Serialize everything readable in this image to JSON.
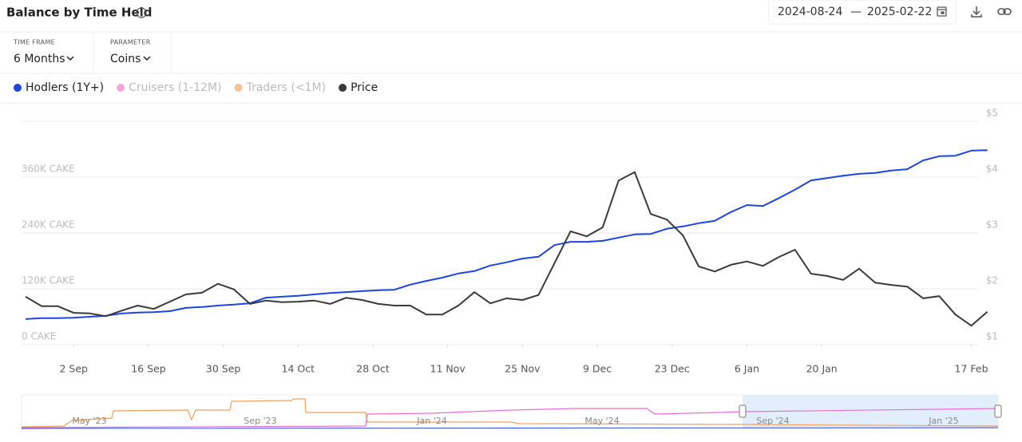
{
  "header": {
    "title": "Balance by Time Held",
    "date_from": "2024-08-24",
    "date_separator": "—",
    "date_to": "2025-02-22"
  },
  "controls": {
    "time_frame_label": "TIME FRAME",
    "time_frame": "6 Months",
    "parameter_label": "PARAMETER",
    "parameter": "Coins"
  },
  "navigator": {
    "labels": [
      "May '23",
      "Sep '23",
      "Jan '24",
      "May '24",
      "Sep '24",
      "Jan '25"
    ]
  },
  "chart_data": {
    "type": "line",
    "x": [
      "2024-08-24",
      "2024-08-27",
      "2024-08-30",
      "2024-09-02",
      "2024-09-05",
      "2024-09-08",
      "2024-09-11",
      "2024-09-14",
      "2024-09-17",
      "2024-09-20",
      "2024-09-23",
      "2024-09-26",
      "2024-09-29",
      "2024-10-02",
      "2024-10-05",
      "2024-10-08",
      "2024-10-11",
      "2024-10-14",
      "2024-10-17",
      "2024-10-20",
      "2024-10-23",
      "2024-10-26",
      "2024-10-29",
      "2024-11-01",
      "2024-11-04",
      "2024-11-07",
      "2024-11-10",
      "2024-11-13",
      "2024-11-16",
      "2024-11-19",
      "2024-11-22",
      "2024-11-25",
      "2024-11-28",
      "2024-12-01",
      "2024-12-04",
      "2024-12-07",
      "2024-12-10",
      "2024-12-13",
      "2024-12-16",
      "2024-12-19",
      "2024-12-22",
      "2024-12-25",
      "2024-12-28",
      "2024-12-31",
      "2025-01-03",
      "2025-01-06",
      "2025-01-09",
      "2025-01-12",
      "2025-01-15",
      "2025-01-18",
      "2025-01-21",
      "2025-01-24",
      "2025-01-27",
      "2025-01-30",
      "2025-02-02",
      "2025-02-05",
      "2025-02-08",
      "2025-02-11",
      "2025-02-14",
      "2025-02-17",
      "2025-02-20"
    ],
    "series": [
      {
        "name": "Hodlers (1Y+)",
        "color": "#1f44e0",
        "axis": "y",
        "visible": true,
        "values": [
          55000,
          57000,
          57000,
          58000,
          60000,
          62000,
          67000,
          69000,
          70000,
          72000,
          79000,
          81000,
          84000,
          86000,
          89000,
          101000,
          103000,
          105000,
          108000,
          111000,
          113000,
          115000,
          117000,
          118000,
          129000,
          137000,
          144000,
          153000,
          158000,
          170000,
          177000,
          185000,
          189000,
          214000,
          221000,
          221000,
          223000,
          230000,
          237000,
          238000,
          249000,
          254000,
          261000,
          266000,
          285000,
          300000,
          298000,
          315000,
          333000,
          353000,
          358000,
          363000,
          367000,
          369000,
          374000,
          377000,
          396000,
          405000,
          406000,
          417000,
          418000
        ]
      },
      {
        "name": "Cruisers (1-12M)",
        "color": "#f3a6d8",
        "visible": false
      },
      {
        "name": "Traders (<1M)",
        "color": "#f7c49a",
        "visible": false
      },
      {
        "name": "Price",
        "color": "#3a3a3a",
        "axis": "y2",
        "visible": true,
        "values": [
          1.86,
          1.69,
          1.69,
          1.57,
          1.56,
          1.51,
          1.61,
          1.7,
          1.64,
          1.77,
          1.9,
          1.93,
          2.09,
          1.99,
          1.73,
          1.79,
          1.76,
          1.77,
          1.79,
          1.73,
          1.84,
          1.8,
          1.73,
          1.7,
          1.7,
          1.54,
          1.54,
          1.7,
          1.94,
          1.74,
          1.83,
          1.8,
          1.89,
          2.46,
          3.03,
          2.94,
          3.1,
          3.94,
          4.09,
          3.34,
          3.24,
          2.96,
          2.4,
          2.31,
          2.43,
          2.49,
          2.41,
          2.57,
          2.7,
          2.27,
          2.23,
          2.16,
          2.36,
          2.11,
          2.07,
          2.04,
          1.83,
          1.87,
          1.54,
          1.34,
          1.59
        ]
      }
    ],
    "xlim": [
      "2024-08-24",
      "2025-02-22"
    ],
    "xticks": [
      {
        "value": "2024-09-02",
        "label": "2 Sep"
      },
      {
        "value": "2024-09-16",
        "label": "16 Sep"
      },
      {
        "value": "2024-09-30",
        "label": "30 Sep"
      },
      {
        "value": "2024-10-14",
        "label": "14 Oct"
      },
      {
        "value": "2024-10-28",
        "label": "28 Oct"
      },
      {
        "value": "2024-11-11",
        "label": "11 Nov"
      },
      {
        "value": "2024-11-25",
        "label": "25 Nov"
      },
      {
        "value": "2024-12-09",
        "label": "9 Dec"
      },
      {
        "value": "2024-12-23",
        "label": "23 Dec"
      },
      {
        "value": "2025-01-06",
        "label": "6 Jan"
      },
      {
        "value": "2025-01-20",
        "label": "20 Jan"
      },
      {
        "value": "2025-02-17",
        "label": "17 Feb"
      }
    ],
    "ylim": [
      0,
      480000
    ],
    "yticks": [
      {
        "value": 0,
        "label": "0 CAKE"
      },
      {
        "value": 120000,
        "label": "120K CAKE"
      },
      {
        "value": 240000,
        "label": "240K CAKE"
      },
      {
        "value": 360000,
        "label": "360K CAKE"
      }
    ],
    "y2lim": [
      1,
      5
    ],
    "y2ticks": [
      {
        "value": 1,
        "label": "$1"
      },
      {
        "value": 2,
        "label": "$2"
      },
      {
        "value": 3,
        "label": "$3"
      },
      {
        "value": 4,
        "label": "$4"
      },
      {
        "value": 5,
        "label": "$5"
      }
    ],
    "grid": true
  }
}
